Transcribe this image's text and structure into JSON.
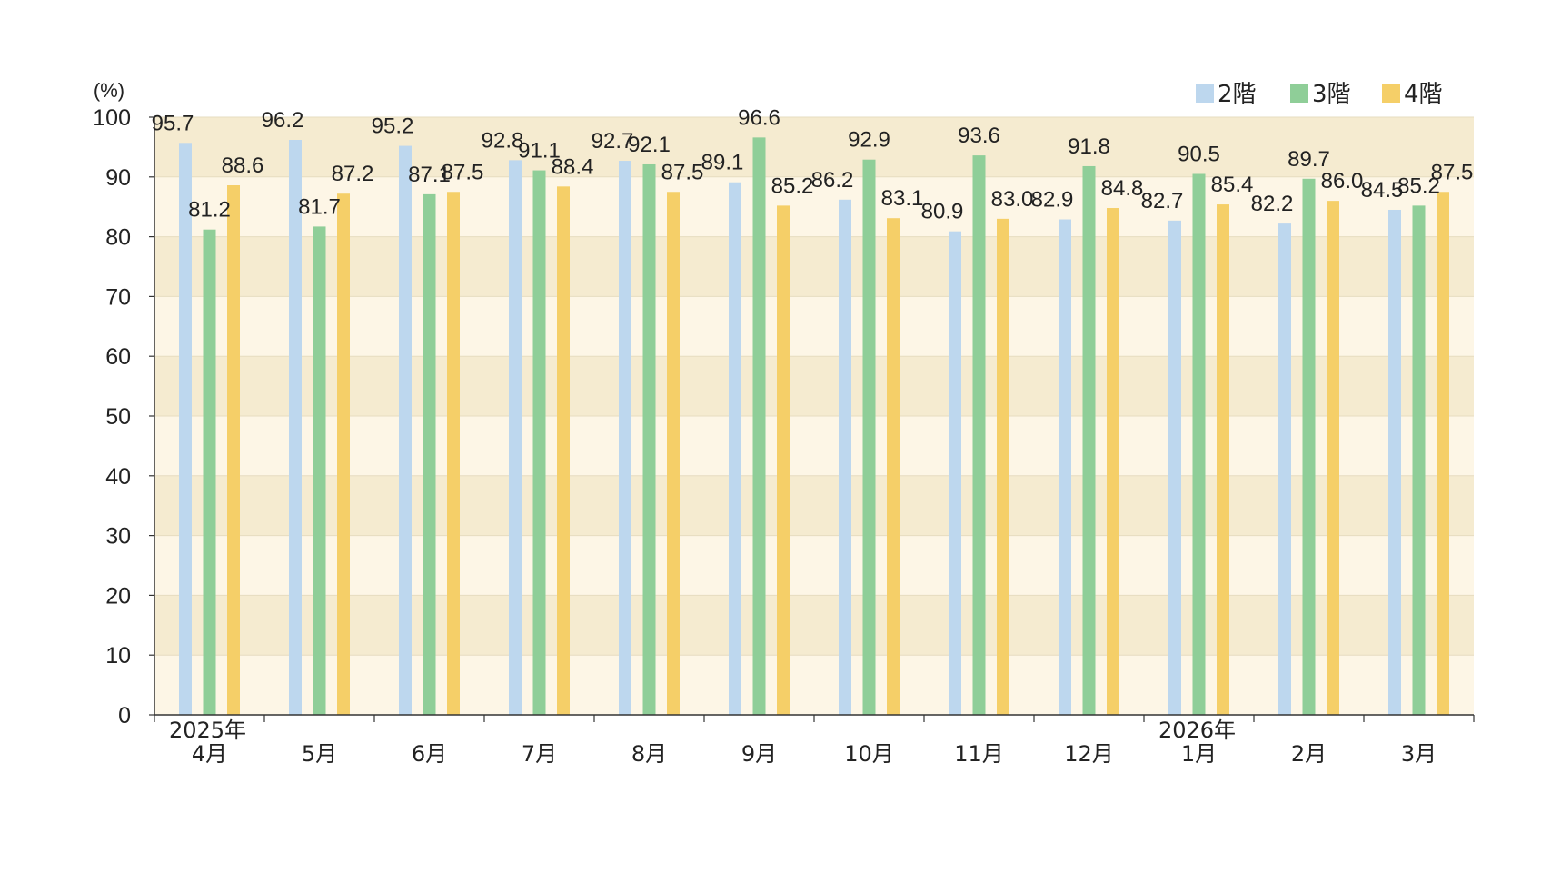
{
  "chart_data": {
    "type": "bar",
    "ylabel": "(%)",
    "ylim": [
      0,
      100
    ],
    "yticks": [
      "0",
      "10",
      "20",
      "30",
      "40",
      "50",
      "60",
      "70",
      "80",
      "90",
      "100"
    ],
    "categories": [
      {
        "year": "2025年",
        "month": "4月"
      },
      {
        "year": "",
        "month": "5月"
      },
      {
        "year": "",
        "month": "6月"
      },
      {
        "year": "",
        "month": "7月"
      },
      {
        "year": "",
        "month": "8月"
      },
      {
        "year": "",
        "month": "9月"
      },
      {
        "year": "",
        "month": "10月"
      },
      {
        "year": "",
        "month": "11月"
      },
      {
        "year": "",
        "month": "12月"
      },
      {
        "year": "2026年",
        "month": "1月"
      },
      {
        "year": "",
        "month": "2月"
      },
      {
        "year": "",
        "month": "3月"
      }
    ],
    "series": [
      {
        "name": "2階",
        "color": "#bdd7ee",
        "values": [
          95.7,
          96.2,
          95.2,
          92.8,
          92.7,
          89.1,
          86.2,
          80.9,
          82.9,
          82.7,
          82.2,
          84.5
        ],
        "labels": [
          "95.7",
          "96.2",
          "95.2",
          "92.8",
          "92.7",
          "89.1",
          "86.2",
          "80.9",
          "82.9",
          "82.7",
          "82.2",
          "84.5"
        ]
      },
      {
        "name": "3階",
        "color": "#8fce98",
        "values": [
          81.2,
          81.7,
          87.1,
          91.1,
          92.1,
          96.6,
          92.9,
          93.6,
          91.8,
          90.5,
          89.7,
          85.2
        ],
        "labels": [
          "81.2",
          "81.7",
          "87.1",
          "91.1",
          "92.1",
          "96.6",
          "92.9",
          "93.6",
          "91.8",
          "90.5",
          "89.7",
          "85.2"
        ]
      },
      {
        "name": "4階",
        "color": "#f5cf68",
        "values": [
          88.6,
          87.2,
          87.5,
          88.4,
          87.5,
          85.2,
          83.1,
          83.0,
          84.8,
          85.4,
          86.0,
          87.5
        ],
        "labels": [
          "88.6",
          "87.2",
          "87.5",
          "88.4",
          "87.5",
          "85.2",
          "83.1",
          "83.0",
          "84.8",
          "85.4",
          "86.0",
          "87.5"
        ]
      }
    ],
    "legend_position": "top-right",
    "background_bands": [
      "#f5ebd0",
      "#fdf6e6"
    ],
    "grid": true
  }
}
